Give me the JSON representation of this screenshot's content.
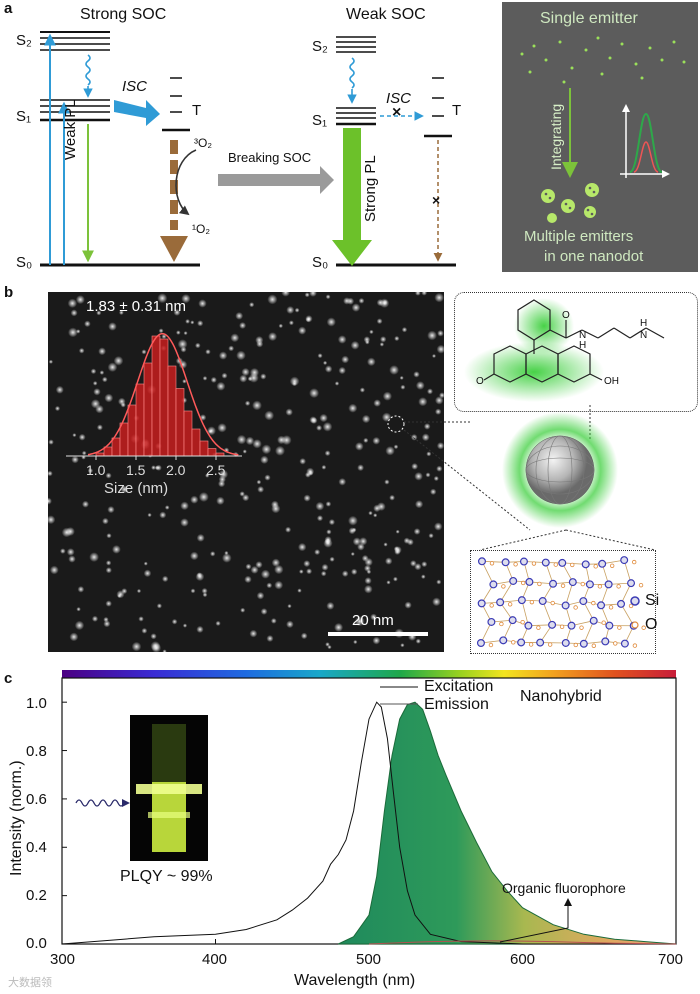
{
  "panel_a": {
    "letter": "a",
    "strong_title": "Strong SOC",
    "weak_title": "Weak SOC",
    "s2": "S₂",
    "s1": "S₁",
    "s0": "S₀",
    "t": "T",
    "isc": "ISC",
    "weak_pl": "Weak PL",
    "strong_pl": "Strong PL",
    "o2_triplet": "³O₂",
    "o2_singlet": "¹O₂",
    "breaking_soc": "Breaking SOC",
    "cross": "×",
    "single_emitter": "Single emitter",
    "integrating": "Integrating",
    "multiple_emitters_1": "Multiple emitters",
    "multiple_emitters_2": "in one nanodot"
  },
  "panel_b": {
    "letter": "b",
    "size_label": "1.83 ± 0.31 nm",
    "xlabel": "Size (nm)",
    "scale_bar": "20 nm",
    "si": "Si",
    "o": "O",
    "molecule_o": "O",
    "molecule_oh": "OH",
    "molecule_h_top": "H",
    "molecule_h_bottom": "H",
    "molecule_n1": "N",
    "molecule_n2": "N",
    "molecule_o_carbonyl": "O",
    "colors": {
      "green_glow": "#33cc33",
      "hist_red": "#c81e1e",
      "si_blue": "#3b3bb5",
      "o_orange": "#e08a3a"
    }
  },
  "panel_c": {
    "letter": "c",
    "legend_excitation": "Excitation",
    "legend_emission": "Emission",
    "nanohybrid": "Nanohybrid",
    "plqy": "PLQY ~ 99%",
    "organic_fluorophore": "Organic fluorophore",
    "colors": {
      "emission_fill": "#1e8a5a",
      "axis": "#111111"
    }
  },
  "watermark": "大数据领",
  "chart_data": [
    {
      "type": "bar",
      "x_ticks": [
        "1.0",
        "1.5",
        "2.0",
        "2.5"
      ],
      "xlabel": "Size (nm)",
      "title": "1.83 ± 0.31 nm",
      "bin_centers": [
        1.05,
        1.15,
        1.25,
        1.35,
        1.45,
        1.55,
        1.65,
        1.75,
        1.85,
        1.95,
        2.05,
        2.15,
        2.25,
        2.35,
        2.45,
        2.55
      ],
      "values": [
        2,
        6,
        12,
        22,
        34,
        48,
        62,
        80,
        78,
        60,
        45,
        30,
        18,
        10,
        5,
        2
      ],
      "fit": "gaussian"
    },
    {
      "type": "line",
      "xlabel": "Wavelength (nm)",
      "ylabel": "Intensity (norm.)",
      "xlim": [
        300,
        700
      ],
      "ylim": [
        0,
        1.1
      ],
      "x_ticks": [
        "300",
        "400",
        "500",
        "600",
        "700"
      ],
      "y_ticks": [
        "0.0",
        "0.2",
        "0.4",
        "0.6",
        "0.8",
        "1.0"
      ],
      "series": [
        {
          "name": "Excitation",
          "x": [
            300,
            320,
            340,
            360,
            380,
            400,
            420,
            440,
            450,
            460,
            470,
            475,
            480,
            485,
            490,
            495,
            500,
            505,
            508,
            512,
            516,
            520,
            525,
            530,
            540,
            560,
            600,
            650,
            700
          ],
          "y": [
            0.0,
            0.01,
            0.02,
            0.03,
            0.035,
            0.04,
            0.06,
            0.1,
            0.14,
            0.19,
            0.26,
            0.33,
            0.37,
            0.43,
            0.55,
            0.75,
            0.93,
            1.0,
            0.98,
            0.85,
            0.62,
            0.4,
            0.22,
            0.12,
            0.04,
            0.01,
            0.0,
            0.0,
            0.0
          ]
        },
        {
          "name": "Emission",
          "x": [
            480,
            490,
            500,
            505,
            510,
            515,
            520,
            525,
            530,
            535,
            540,
            545,
            550,
            560,
            570,
            580,
            590,
            600,
            620,
            640,
            660,
            680,
            700
          ],
          "y": [
            0.0,
            0.03,
            0.12,
            0.28,
            0.55,
            0.78,
            0.93,
            0.99,
            1.0,
            0.97,
            0.88,
            0.78,
            0.7,
            0.55,
            0.42,
            0.3,
            0.22,
            0.15,
            0.08,
            0.04,
            0.02,
            0.01,
            0.0
          ]
        },
        {
          "name": "Organic fluorophore",
          "x": [
            500,
            520,
            540,
            560,
            580,
            600,
            620,
            640,
            660,
            700
          ],
          "y": [
            0.0,
            0.005,
            0.01,
            0.012,
            0.013,
            0.012,
            0.01,
            0.006,
            0.003,
            0.0
          ]
        }
      ]
    }
  ]
}
